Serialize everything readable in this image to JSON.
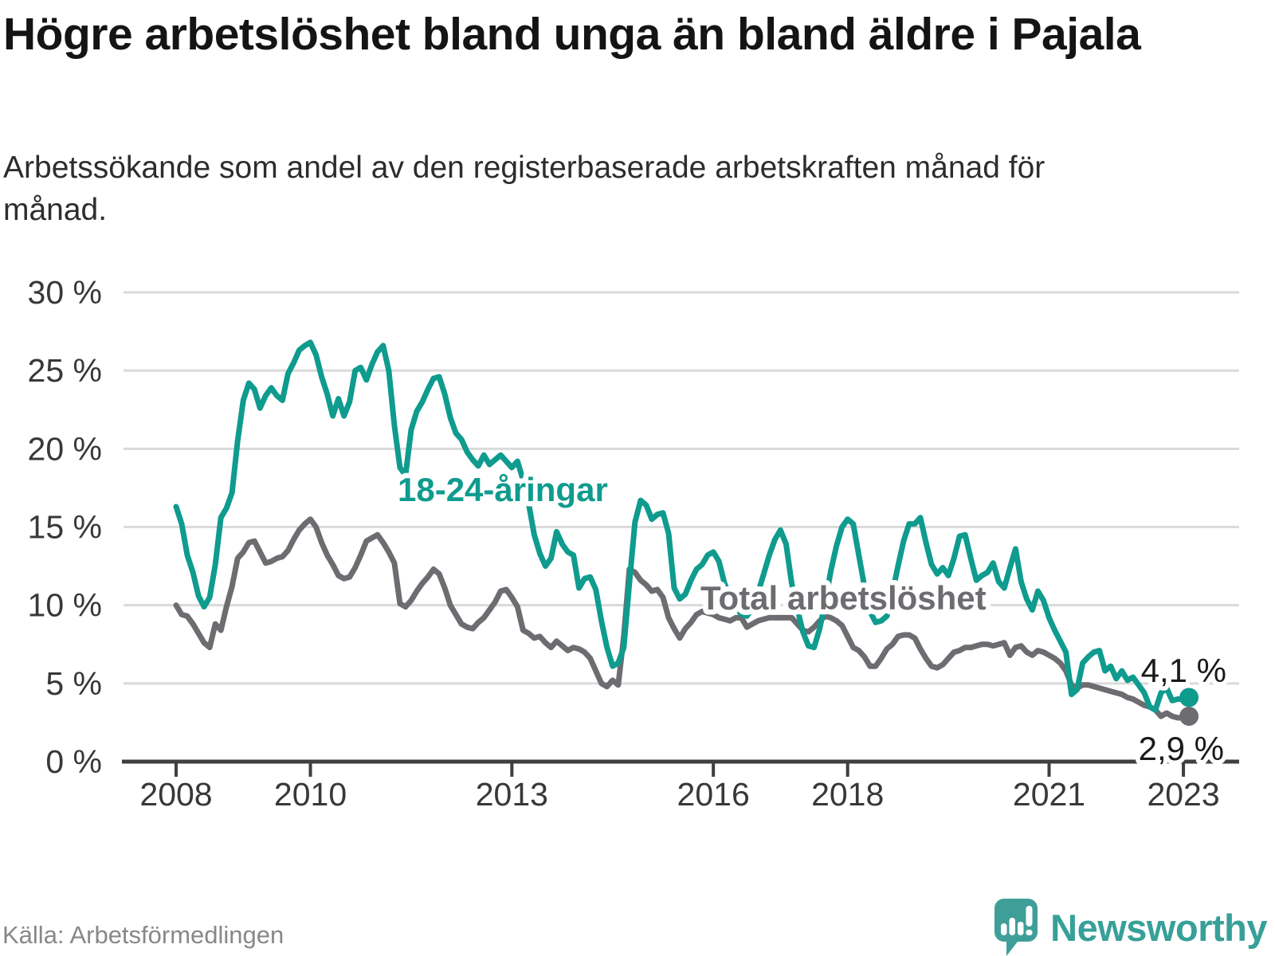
{
  "header": {
    "title": "Högre arbetslöshet bland unga än bland äldre i Pajala",
    "subtitle": "Arbetssökande som andel av den registerbaserade arbetskraften månad för månad."
  },
  "footer": {
    "source": "Källa: Arbetsförmedlingen",
    "brand": "Newsworthy",
    "brand_icon": "newsworthy-speech-bubble-bar-chart",
    "brand_color": "#3f9f98"
  },
  "chart_data": {
    "type": "line",
    "title": "Högre arbetslöshet bland unga än bland äldre i Pajala",
    "xlabel": "",
    "ylabel": "Arbetssökande som andel av den registerbaserade arbetskraften",
    "ylim": [
      0,
      30
    ],
    "grid": "horizontal",
    "legend_position": "inline-labels",
    "frequency": "monthly",
    "x_start": "2008-01",
    "x_end": "2023-02",
    "y_ticks": [
      {
        "value": 0,
        "label": "0 %"
      },
      {
        "value": 5,
        "label": "5 %"
      },
      {
        "value": 10,
        "label": "10 %"
      },
      {
        "value": 15,
        "label": "15 %"
      },
      {
        "value": 20,
        "label": "20 %"
      },
      {
        "value": 25,
        "label": "25 %"
      },
      {
        "value": 30,
        "label": "30 %"
      }
    ],
    "x_ticks": [
      {
        "year": 2008,
        "label": "2008"
      },
      {
        "year": 2010,
        "label": "2010"
      },
      {
        "year": 2013,
        "label": "2013"
      },
      {
        "year": 2016,
        "label": "2016"
      },
      {
        "year": 2018,
        "label": "2018"
      },
      {
        "year": 2021,
        "label": "2021"
      },
      {
        "year": 2023,
        "label": "2023"
      }
    ],
    "series": [
      {
        "id": "total",
        "name": "Total arbetslöshet",
        "color": "#6c6c71",
        "end_label": "2,9 %",
        "end_value": 2.9,
        "values": [
          10.0,
          9.4,
          9.3,
          8.8,
          8.2,
          7.6,
          7.3,
          8.8,
          8.4,
          9.9,
          11.2,
          13.0,
          13.4,
          14.0,
          14.1,
          13.4,
          12.7,
          12.8,
          13.0,
          13.1,
          13.5,
          14.2,
          14.8,
          15.2,
          15.5,
          15.0,
          14.0,
          13.2,
          12.6,
          11.9,
          11.7,
          11.8,
          12.4,
          13.2,
          14.1,
          14.3,
          14.5,
          14.0,
          13.4,
          12.7,
          10.1,
          9.9,
          10.3,
          10.9,
          11.4,
          11.8,
          12.3,
          12.0,
          11.1,
          10.0,
          9.4,
          8.8,
          8.6,
          8.5,
          8.9,
          9.2,
          9.7,
          10.2,
          10.9,
          11.0,
          10.5,
          9.9,
          8.4,
          8.2,
          7.9,
          8.0,
          7.6,
          7.3,
          7.7,
          7.4,
          7.1,
          7.3,
          7.2,
          7.0,
          6.6,
          5.8,
          5.0,
          4.8,
          5.2,
          4.9,
          8.0,
          12.3,
          12.1,
          11.6,
          11.3,
          10.9,
          11.0,
          10.5,
          9.2,
          8.5,
          7.9,
          8.5,
          8.9,
          9.4,
          9.6,
          9.5,
          9.4,
          9.2,
          9.1,
          9.0,
          9.2,
          9.2,
          8.6,
          8.8,
          9.0,
          9.1,
          9.2,
          9.2,
          9.2,
          9.2,
          9.2,
          8.8,
          8.4,
          8.3,
          8.6,
          9.0,
          9.3,
          9.2,
          9.0,
          8.7,
          8.0,
          7.3,
          7.1,
          6.7,
          6.1,
          6.1,
          6.6,
          7.2,
          7.5,
          8.0,
          8.1,
          8.1,
          7.9,
          7.2,
          6.6,
          6.1,
          6.0,
          6.2,
          6.6,
          7.0,
          7.1,
          7.3,
          7.3,
          7.4,
          7.5,
          7.5,
          7.4,
          7.5,
          7.6,
          6.8,
          7.3,
          7.4,
          7.0,
          6.8,
          7.1,
          7.0,
          6.8,
          6.6,
          6.3,
          5.8,
          4.9,
          4.7,
          4.9,
          4.9,
          4.8,
          4.7,
          4.6,
          4.5,
          4.4,
          4.3,
          4.1,
          4.0,
          3.8,
          3.6,
          3.5,
          3.3,
          2.9,
          3.1,
          2.9,
          2.8,
          2.8,
          2.9
        ]
      },
      {
        "id": "youth",
        "name": "18-24-åringar",
        "color": "#0f9b8e",
        "end_label": "4,1 %",
        "end_value": 4.1,
        "values": [
          16.3,
          15.2,
          13.2,
          12.1,
          10.6,
          9.9,
          10.5,
          12.6,
          15.6,
          16.2,
          17.2,
          20.5,
          23.1,
          24.2,
          23.8,
          22.6,
          23.4,
          23.9,
          23.4,
          23.1,
          24.8,
          25.5,
          26.3,
          26.6,
          26.8,
          26.0,
          24.6,
          23.5,
          22.1,
          23.2,
          22.1,
          23.0,
          25.0,
          25.2,
          24.4,
          25.4,
          26.2,
          26.6,
          25.0,
          21.5,
          18.8,
          18.3,
          21.2,
          22.4,
          23.0,
          23.8,
          24.5,
          24.6,
          23.5,
          22.0,
          21.0,
          20.6,
          19.8,
          19.3,
          18.9,
          19.6,
          19.0,
          19.3,
          19.6,
          19.2,
          18.8,
          19.2,
          18.0,
          16.5,
          14.5,
          13.3,
          12.5,
          13.0,
          14.7,
          13.9,
          13.4,
          13.2,
          11.1,
          11.7,
          11.8,
          11.0,
          9.0,
          7.3,
          6.1,
          6.3,
          7.3,
          11.4,
          15.3,
          16.7,
          16.4,
          15.5,
          15.8,
          15.9,
          14.6,
          11.1,
          10.4,
          10.7,
          11.6,
          12.3,
          12.6,
          13.2,
          13.4,
          12.8,
          11.4,
          10.5,
          9.9,
          9.4,
          9.3,
          9.8,
          10.8,
          12.0,
          13.2,
          14.2,
          14.8,
          13.9,
          11.4,
          9.8,
          8.3,
          7.4,
          7.3,
          8.5,
          10.2,
          12.2,
          13.8,
          15.0,
          15.5,
          15.2,
          13.2,
          11.2,
          9.6,
          8.9,
          9.0,
          9.3,
          10.8,
          12.5,
          14.1,
          15.2,
          15.2,
          15.6,
          14.0,
          12.6,
          12.0,
          12.4,
          11.9,
          13.0,
          14.4,
          14.5,
          13.0,
          11.6,
          11.9,
          12.1,
          12.7,
          11.5,
          11.1,
          12.4,
          13.6,
          11.5,
          10.4,
          9.7,
          10.9,
          10.3,
          9.2,
          8.4,
          7.7,
          7.0,
          4.3,
          4.6,
          6.3,
          6.7,
          7.0,
          7.1,
          5.8,
          6.1,
          5.3,
          5.8,
          5.2,
          5.4,
          4.9,
          4.4,
          3.5,
          3.3,
          4.4,
          4.7,
          3.9,
          4.0,
          4.0,
          4.1
        ]
      }
    ],
    "colors": {
      "grid": "#dadada",
      "axis": "#3f3f3f",
      "tick_text": "#383838",
      "annotation_text": "#1a1a1a"
    }
  }
}
